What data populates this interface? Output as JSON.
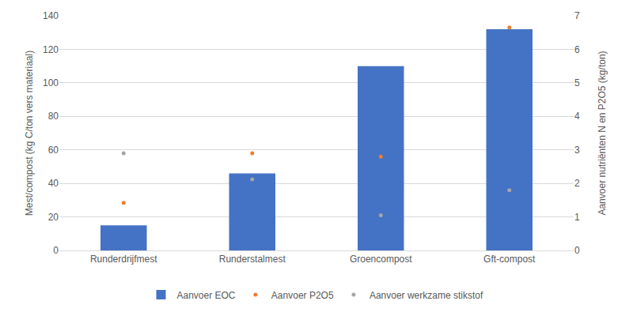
{
  "chart_data": {
    "type": "bar",
    "categories": [
      "Runderdrijfmest",
      "Runderstalmest",
      "Groencompost",
      "Gft-compost"
    ],
    "series": [
      {
        "name": "Aanvoer EOC",
        "type": "bar",
        "color": "#4472c4",
        "values": [
          15,
          46,
          110,
          132
        ]
      },
      {
        "name": "Aanvoer P2O5",
        "type": "scatter",
        "marker": "circle",
        "color": "#ed7d31",
        "axis": "y2",
        "values": [
          1.42,
          2.9,
          2.8,
          6.65
        ]
      },
      {
        "name": "Aanvoer werkzame stikstof",
        "type": "scatter",
        "marker": "circle",
        "color": "#a5a5a5",
        "axis": "y2",
        "values": [
          2.9,
          2.12,
          1.05,
          1.8
        ]
      }
    ],
    "y_label": "Mest/compost (kg C/ton vers materiaal)",
    "y2_label": "Aanvoer nutriënten N en P2O5 (kg/ton)",
    "ylim": [
      0,
      140
    ],
    "yticks": [
      0,
      20,
      40,
      60,
      80,
      100,
      120,
      140
    ],
    "y2lim": [
      0,
      7
    ],
    "y2ticks": [
      0,
      1,
      2,
      3,
      4,
      5,
      6,
      7
    ],
    "grid": true,
    "legend": "bottom"
  }
}
